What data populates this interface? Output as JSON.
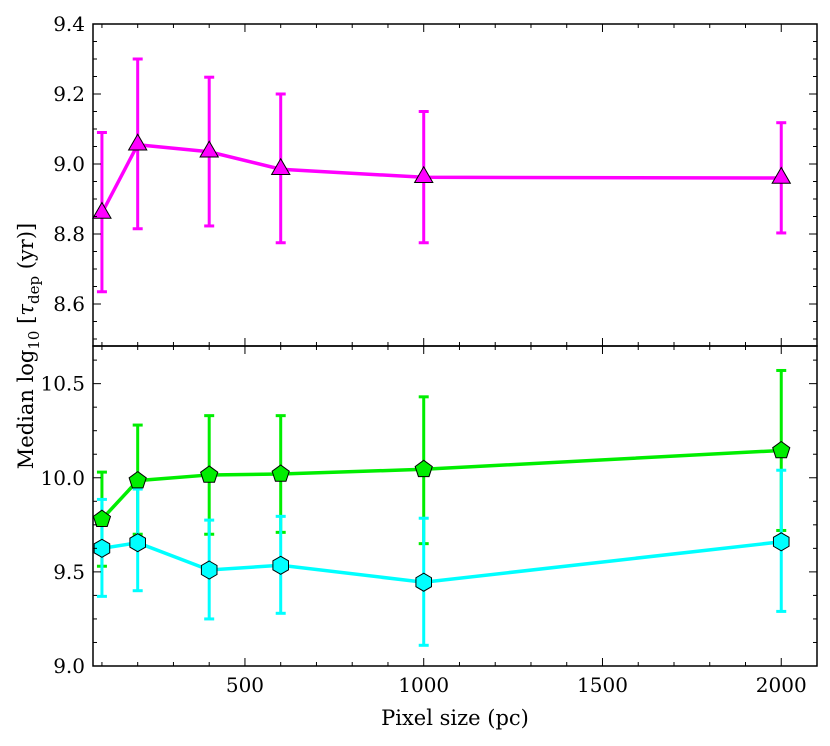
{
  "chart_data": [
    {
      "type": "line",
      "panel": "top",
      "ylim": [
        8.48,
        9.4
      ],
      "yticks": [
        8.6,
        8.8,
        9.0,
        9.2,
        9.4
      ],
      "ytick_labels": [
        "8.6",
        "8.8",
        "9.0",
        "9.2",
        "9.4"
      ],
      "series": [
        {
          "name": "magenta",
          "color": "#ff00ff",
          "marker": "triangle",
          "x": [
            100,
            200,
            400,
            600,
            1000,
            2000
          ],
          "y": [
            8.86,
            9.055,
            9.035,
            8.985,
            8.962,
            8.96
          ],
          "yerr_low": [
            8.635,
            8.815,
            8.823,
            8.775,
            8.775,
            8.803
          ],
          "yerr_high": [
            9.09,
            9.3,
            9.248,
            9.2,
            9.15,
            9.118
          ]
        }
      ]
    },
    {
      "type": "line",
      "panel": "bottom",
      "ylim": [
        9.0,
        10.7
      ],
      "yticks": [
        9.0,
        9.5,
        10.0,
        10.5
      ],
      "ytick_labels": [
        "9.0",
        "9.5",
        "10.0",
        "10.5"
      ],
      "series": [
        {
          "name": "green",
          "color": "#00ee00",
          "marker": "pentagon",
          "x": [
            100,
            200,
            400,
            600,
            1000,
            2000
          ],
          "y": [
            9.78,
            9.985,
            10.015,
            10.02,
            10.045,
            10.145
          ],
          "yerr_low": [
            9.53,
            9.7,
            9.7,
            9.71,
            9.65,
            9.72
          ],
          "yerr_high": [
            10.03,
            10.28,
            10.33,
            10.33,
            10.43,
            10.57
          ]
        },
        {
          "name": "cyan",
          "color": "#00ffff",
          "marker": "hexagon",
          "x": [
            100,
            200,
            400,
            600,
            1000,
            2000
          ],
          "y": [
            9.625,
            9.655,
            9.51,
            9.535,
            9.445,
            9.66
          ],
          "yerr_low": [
            9.37,
            9.4,
            9.25,
            9.28,
            9.11,
            9.29
          ],
          "yerr_high": [
            9.885,
            9.94,
            9.775,
            9.795,
            9.785,
            10.04
          ]
        }
      ]
    }
  ],
  "axes": {
    "xlim": [
      75,
      2100
    ],
    "xticks": [
      500,
      1000,
      1500,
      2000
    ],
    "xtick_labels": [
      "500",
      "1000",
      "1500",
      "2000"
    ],
    "xlabel": "Pixel size (pc)",
    "ylabel_main": "Median log",
    "ylabel_sub": "10",
    "ylabel_open": " [",
    "ylabel_tau": "τ",
    "ylabel_tau_sub": "dep",
    "ylabel_close": " (yr)]"
  }
}
